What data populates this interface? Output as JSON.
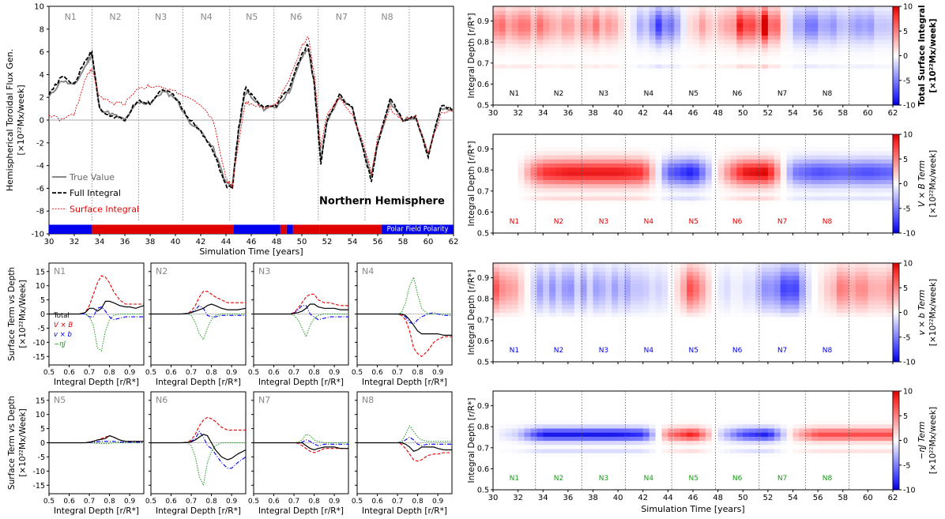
{
  "colors": {
    "red": "#e00000",
    "blue": "#0000ee",
    "green": "#1a9a1a",
    "black": "#000000",
    "gray": "#888888"
  },
  "chart_data": [
    {
      "type": "line",
      "title": "Northern Hemisphere",
      "ylabel": "Hemispherical Toroidal Flux Gen.",
      "yunit": "[×10²²Mx/week]",
      "xlabel": "Simulation Time [years]",
      "xlim": [
        30,
        62
      ],
      "ylim": [
        -10,
        10
      ],
      "xticks": [
        30,
        32,
        34,
        36,
        38,
        40,
        42,
        44,
        46,
        48,
        50,
        52,
        54,
        56,
        58,
        60,
        62
      ],
      "yticks": [
        10,
        8,
        6,
        4,
        2,
        0,
        -2,
        -4,
        -6,
        -8,
        -10
      ],
      "cycle_labels": [
        "N1",
        "N2",
        "N3",
        "N4",
        "N5",
        "N6",
        "N7",
        "N8"
      ],
      "cycle_boundaries": [
        33.4,
        37.1,
        40.6,
        44.3,
        47.8,
        51.3,
        55.0,
        58.5
      ],
      "polarity_label": "Polar Field Polarity",
      "polarity_segments": [
        [
          30,
          33.4,
          "blue"
        ],
        [
          33.4,
          44.6,
          "red"
        ],
        [
          44.6,
          48.3,
          "blue"
        ],
        [
          48.3,
          48.8,
          "red"
        ],
        [
          48.8,
          49.3,
          "blue"
        ],
        [
          49.3,
          51.4,
          "red"
        ],
        [
          51.4,
          56.3,
          "red"
        ],
        [
          56.3,
          62,
          "blue"
        ]
      ],
      "series": [
        {
          "name": "True Value",
          "style": "gray",
          "x": [
            30,
            31,
            32,
            33,
            33.4,
            34,
            35,
            36,
            37,
            38,
            39,
            40,
            41,
            42,
            43,
            44,
            44.5,
            45,
            45.5,
            46,
            47,
            48,
            49,
            50,
            50.5,
            51,
            51.5,
            52,
            53,
            54,
            55,
            55.5,
            56,
            57,
            58,
            59,
            60,
            61,
            62
          ],
          "y": [
            2,
            3.5,
            3,
            5,
            5.8,
            1,
            0.5,
            0,
            1.5,
            1.5,
            2.5,
            2,
            0,
            -1,
            -2.5,
            -5.5,
            -5.8,
            -1,
            2.5,
            2,
            1,
            1.2,
            2.5,
            5.5,
            6.3,
            3,
            -3.5,
            0,
            2,
            1,
            -3,
            -5,
            -2,
            1.5,
            0,
            0.3,
            -3,
            1,
            0.8
          ]
        },
        {
          "name": "Full Integral",
          "style": "black",
          "x": [
            30,
            31,
            32,
            33,
            33.4,
            34,
            35,
            36,
            37,
            38,
            39,
            40,
            41,
            42,
            43,
            44,
            44.5,
            45,
            45.5,
            46,
            47,
            48,
            49,
            50,
            50.5,
            51,
            51.5,
            52,
            53,
            54,
            55,
            55.5,
            56,
            57,
            58,
            59,
            60,
            61,
            62
          ],
          "y": [
            2.2,
            3.8,
            3.2,
            5.5,
            6,
            1,
            0.3,
            0,
            1.8,
            1.5,
            2.8,
            2,
            0.2,
            -1,
            -2.7,
            -5.8,
            -6,
            -0.8,
            2.8,
            2.2,
            1,
            1.3,
            2.8,
            5.8,
            6.6,
            3,
            -3.8,
            0,
            2.2,
            1,
            -3.2,
            -5.3,
            -2,
            1.8,
            0,
            0.3,
            -3.3,
            1.3,
            1
          ]
        },
        {
          "name": "Surface Integral",
          "style": "red",
          "x": [
            30,
            31,
            32,
            33,
            33.4,
            34,
            35,
            36,
            37,
            38,
            39,
            40,
            41,
            42,
            43,
            44,
            44.5,
            45,
            45.5,
            46,
            47,
            48,
            49,
            50,
            50.5,
            51,
            51.5,
            52,
            53,
            54,
            55,
            55.5,
            56,
            57,
            58,
            59,
            60,
            61,
            62
          ],
          "y": [
            0.5,
            0,
            0.5,
            4,
            4.5,
            2,
            1.5,
            1.5,
            2.8,
            3,
            2.8,
            2.5,
            2,
            1.2,
            0,
            -5.2,
            -5.8,
            -2,
            1.5,
            1.5,
            1,
            1.5,
            3.5,
            6.5,
            7.4,
            4,
            -2.5,
            0.5,
            2,
            0.5,
            -2.5,
            -4.8,
            -1.5,
            1,
            0,
            0.5,
            -3,
            0.5,
            0.8
          ]
        }
      ]
    },
    {
      "type": "line",
      "title": "",
      "ylabel": "Surface Term vs Depth",
      "yunit": "[×10²²Mx/Week]",
      "xlabel": "Integral Depth [r/R*]",
      "xlim": [
        0.5,
        0.97
      ],
      "ylim": [
        -18,
        18
      ],
      "xticks": [
        0.5,
        0.6,
        0.7,
        0.8,
        0.9
      ],
      "yticks": [
        15,
        10,
        5,
        0,
        -5,
        -10,
        -15
      ],
      "legend": [
        "Total",
        "V × B",
        "v × b",
        "−ηJ"
      ],
      "x": [
        0.5,
        0.6,
        0.65,
        0.68,
        0.7,
        0.72,
        0.74,
        0.76,
        0.78,
        0.8,
        0.82,
        0.85,
        0.88,
        0.9,
        0.93,
        0.97
      ],
      "panels": [
        {
          "label": "N1",
          "total": [
            0,
            0,
            0,
            0.5,
            2,
            2,
            1,
            2,
            4.5,
            4.5,
            4,
            3,
            2.5,
            2.5,
            2,
            3
          ],
          "vxB": [
            0,
            0,
            0,
            0.5,
            3,
            7,
            11,
            13.5,
            13,
            11,
            8,
            5,
            3.5,
            3.5,
            3.5,
            3.5
          ],
          "vxb": [
            0,
            0,
            0,
            0,
            -1,
            -1,
            2,
            2.5,
            1,
            -1,
            -2,
            -1.5,
            -1,
            -1,
            -1,
            -1
          ],
          "eta": [
            0,
            0,
            0,
            0,
            -1,
            -4,
            -12,
            -13,
            -6,
            -2,
            -0.5,
            0,
            0,
            0,
            0,
            0
          ]
        },
        {
          "label": "N2",
          "total": [
            0,
            0,
            0,
            0.2,
            0.5,
            1,
            1.5,
            2,
            3,
            3.5,
            3,
            2,
            1.5,
            1.5,
            1.5,
            2
          ],
          "vxB": [
            0,
            0,
            0,
            0.2,
            1,
            3,
            6,
            8,
            8,
            7,
            6,
            5,
            4,
            4,
            4,
            4
          ],
          "vxb": [
            0,
            0,
            0,
            0,
            0.5,
            1.5,
            3,
            2,
            -0.5,
            -1,
            -1,
            -0.5,
            -0.5,
            -0.5,
            -0.5,
            -0.5
          ],
          "eta": [
            0,
            0,
            0,
            0,
            -0.5,
            -3,
            -7,
            -9,
            -5,
            -2,
            -0.5,
            0,
            0,
            0,
            0,
            0
          ]
        },
        {
          "label": "N3",
          "total": [
            0,
            0,
            0,
            0,
            0.2,
            0.5,
            1,
            2,
            3.5,
            3.5,
            2.5,
            2,
            2,
            2,
            1.5,
            1.5
          ],
          "vxB": [
            0,
            0,
            0,
            0,
            0.5,
            2,
            4,
            6,
            7,
            7,
            5,
            4,
            4,
            3.5,
            3,
            3
          ],
          "vxb": [
            0,
            0,
            0,
            0,
            0.3,
            1.5,
            3,
            3,
            0,
            -1,
            -2,
            -1.5,
            -1,
            -1,
            -1,
            -1
          ],
          "eta": [
            0,
            0,
            0,
            0,
            -0.5,
            -2,
            -5,
            -8,
            -4,
            -1.5,
            -0.5,
            0,
            0,
            0,
            0,
            0
          ]
        },
        {
          "label": "N4",
          "total": [
            0,
            0,
            0,
            0,
            0,
            0,
            -0.5,
            -2,
            -4,
            -6,
            -7,
            -7,
            -7,
            -7,
            -7.5,
            -7.5
          ],
          "vxB": [
            0,
            0,
            0,
            0,
            0,
            -0.5,
            -2,
            -6,
            -12,
            -14,
            -15,
            -13,
            -10,
            -9,
            -8,
            -8
          ],
          "vxb": [
            0,
            0,
            0,
            0,
            0,
            -0.2,
            -1,
            -3,
            -3.5,
            -2,
            -1,
            0,
            0.5,
            0,
            -0.5,
            -0.5
          ],
          "eta": [
            0,
            0,
            0,
            0,
            0,
            0.5,
            4,
            10,
            13,
            7,
            2,
            0,
            0,
            0,
            0,
            0
          ]
        },
        {
          "label": "N5",
          "total": [
            0,
            0,
            0,
            0,
            0.2,
            0.5,
            1,
            1.2,
            1.5,
            2.5,
            2,
            1,
            0.5,
            0.5,
            0.5,
            0.5
          ],
          "vxB": [
            0,
            0,
            0,
            0,
            0.3,
            0.6,
            1,
            1.5,
            2,
            2.5,
            2,
            1,
            0.5,
            0.5,
            0.5,
            0.5
          ],
          "vxb": [
            0,
            0,
            0,
            0,
            0.1,
            0.2,
            0.4,
            0.5,
            0.5,
            0.5,
            0.5,
            0.3,
            0.2,
            0.2,
            0.2,
            0.2
          ],
          "eta": [
            0,
            0,
            0,
            0,
            0,
            -0.1,
            -0.2,
            -0.3,
            -0.3,
            -0.2,
            0,
            0,
            0,
            0,
            0,
            0
          ]
        },
        {
          "label": "N6",
          "total": [
            0,
            0,
            0,
            0.1,
            0.3,
            1,
            2,
            3,
            2.5,
            0,
            -2.5,
            -5,
            -6,
            -5.5,
            -4,
            -2.5
          ],
          "vxB": [
            0,
            0,
            0,
            0.2,
            1,
            3,
            6,
            8,
            9,
            8.5,
            7.5,
            5.5,
            4.5,
            4.5,
            4.5,
            4.5
          ],
          "vxb": [
            0,
            0,
            0,
            0,
            0.5,
            1.5,
            4,
            2,
            -1,
            -2,
            -4,
            -7,
            -9,
            -9,
            -7,
            -5
          ],
          "eta": [
            0,
            0,
            0,
            0,
            -1,
            -5,
            -12,
            -15,
            -7,
            -3,
            -1,
            0,
            0,
            0,
            0,
            0
          ]
        },
        {
          "label": "N7",
          "total": [
            0,
            0,
            0,
            0,
            0,
            0,
            0,
            -1,
            -2,
            -2.5,
            -2,
            -1.5,
            -1.5,
            -1.5,
            -2,
            -2
          ],
          "vxB": [
            0,
            0,
            0,
            0,
            0,
            -0.2,
            -1,
            -2,
            -3,
            -3.5,
            -3,
            -2,
            -2,
            -2,
            -2,
            -2
          ],
          "vxb": [
            0,
            0,
            0,
            0,
            0,
            0,
            0.2,
            1,
            0.5,
            -0.5,
            -1,
            -0.5,
            -0.5,
            -0.5,
            -0.5,
            -0.5
          ],
          "eta": [
            0,
            0,
            0,
            0,
            0,
            0.1,
            1,
            3,
            2.5,
            1,
            0.5,
            0,
            0,
            0,
            0,
            0
          ]
        },
        {
          "label": "N8",
          "total": [
            0,
            0,
            0,
            0,
            0,
            0,
            -0.5,
            -1.5,
            -3,
            -2.5,
            -1.5,
            -1.5,
            -1.5,
            -2,
            -2.5,
            -2.5
          ],
          "vxB": [
            0,
            0,
            0,
            0,
            0,
            -0.5,
            -2,
            -4,
            -6,
            -6.5,
            -6,
            -4.5,
            -4,
            -4,
            -3.5,
            -3.5
          ],
          "vxb": [
            0,
            0,
            0,
            0,
            0,
            0.2,
            1,
            2,
            1,
            -0.5,
            -1,
            -0.5,
            -0.5,
            -0.5,
            -0.5,
            -0.5
          ],
          "eta": [
            0,
            0,
            0,
            0,
            0,
            0.5,
            3,
            6,
            4,
            2,
            1,
            0.5,
            0.5,
            0.5,
            0.5,
            0.5
          ]
        }
      ]
    },
    {
      "type": "heatmap",
      "xlabel": "Simulation Time [years]",
      "ylabel": "Integral Depth [r/R*]",
      "xlim": [
        30,
        62
      ],
      "ylim": [
        0.5,
        0.97
      ],
      "xticks": [
        30,
        32,
        34,
        36,
        38,
        40,
        42,
        44,
        46,
        48,
        50,
        52,
        54,
        56,
        58,
        60,
        62
      ],
      "yticks": [
        0.9,
        0.8,
        0.7,
        0.6,
        0.5
      ],
      "colorbar_ticks": [
        10,
        5,
        0,
        -5,
        -10
      ],
      "cycle_labels": [
        "N1",
        "N2",
        "N3",
        "N4",
        "N5",
        "N6",
        "N7",
        "N8"
      ],
      "cycle_boundaries": [
        33.4,
        37.1,
        40.6,
        44.3,
        47.8,
        51.3,
        55.0,
        58.5
      ],
      "panels": [
        {
          "colorbar_label": "Total Surface Integral",
          "colorbar_unit": "[×10²²Mx/week]",
          "label_color": "black",
          "bold": true,
          "ycenter": 0.88,
          "spread": 0.08,
          "cutoff": 0.7,
          "streaky": true,
          "amps": [
            5,
            6,
            4,
            3,
            5,
            3,
            -3,
            -7,
            3,
            2,
            8,
            9,
            -3,
            -5,
            -4,
            -3,
            -2
          ]
        },
        {
          "colorbar_label": "V × B Term",
          "colorbar_unit": "[×10²²Mx/week]",
          "label_color": "red",
          "bold": false,
          "ycenter": 0.79,
          "spread": 0.06,
          "cutoff": 0.68,
          "streaky": false,
          "amps": [
            0,
            0,
            8,
            9,
            9,
            9,
            8,
            -6,
            -9,
            1,
            9,
            10,
            -5,
            -7,
            -6,
            -7,
            -6
          ]
        },
        {
          "colorbar_label": "v × b Term",
          "colorbar_unit": "[×10²²Mx/week]",
          "label_color": "blue",
          "bold": false,
          "ycenter": 0.85,
          "spread": 0.1,
          "cutoff": 0.74,
          "streaky": true,
          "amps": [
            5,
            3,
            -4,
            -3,
            -3,
            -3,
            -2,
            -1,
            6,
            -1,
            -1,
            -4,
            -6,
            1,
            4,
            5,
            5
          ]
        },
        {
          "colorbar_label": "−ηJ Term",
          "colorbar_unit": "[×10²²Mx/week]",
          "label_color": "green",
          "bold": false,
          "ycenter": 0.765,
          "spread": 0.03,
          "cutoff": 0.7,
          "streaky": false,
          "amps": [
            0,
            -2,
            -9,
            -9,
            -9,
            -9,
            -8,
            5,
            9,
            -1,
            -7,
            -9,
            2,
            7,
            7,
            7,
            7
          ]
        }
      ]
    }
  ]
}
